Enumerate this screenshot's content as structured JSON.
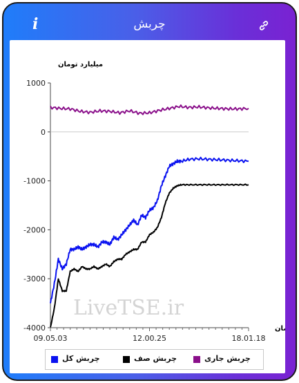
{
  "header": {
    "title": "چربش",
    "info_icon": "i"
  },
  "watermark": "LiveTSE.ir",
  "colors": {
    "total": "#0a12f0",
    "slippage": "#000000",
    "current": "#8a0f8a",
    "gradient_start": "#1f7dfa",
    "gradient_end": "#7a22d2"
  },
  "chart_data": {
    "type": "line",
    "ylabel": "میلیارد تومان",
    "xlabel": "زمان",
    "ylim": [
      -4000,
      1000
    ],
    "yticks": [
      1000,
      0,
      -1000,
      -2000,
      -3000,
      -4000
    ],
    "yticks_labels": [
      "1000",
      "0",
      "-1000",
      "-2000",
      "-3000",
      "-4000"
    ],
    "x_tick_labels": [
      "09.05.03",
      "12.00.25",
      "18.01.18"
    ],
    "x_tick_positions": [
      0,
      0.5,
      1
    ],
    "grid": "horizontal at 0",
    "legend_position": "bottom",
    "series": [
      {
        "name": "چربش کل",
        "color": "#0a12f0",
        "x": [
          0,
          0.02,
          0.04,
          0.06,
          0.08,
          0.1,
          0.12,
          0.14,
          0.16,
          0.18,
          0.2,
          0.22,
          0.24,
          0.26,
          0.28,
          0.3,
          0.32,
          0.34,
          0.36,
          0.38,
          0.4,
          0.42,
          0.44,
          0.46,
          0.48,
          0.5,
          0.52,
          0.54,
          0.56,
          0.58,
          0.6,
          0.62,
          0.64,
          0.66,
          0.7,
          0.75,
          0.8,
          0.85,
          0.9,
          0.95,
          1.0
        ],
        "values": [
          -3500,
          -3100,
          -2600,
          -2800,
          -2700,
          -2400,
          -2400,
          -2350,
          -2400,
          -2350,
          -2300,
          -2300,
          -2350,
          -2250,
          -2250,
          -2300,
          -2150,
          -2200,
          -2100,
          -2000,
          -1900,
          -1800,
          -1900,
          -1700,
          -1750,
          -1600,
          -1550,
          -1400,
          -1100,
          -900,
          -700,
          -650,
          -600,
          -600,
          -560,
          -550,
          -560,
          -570,
          -580,
          -590,
          -600
        ]
      },
      {
        "name": "چربش صف",
        "color": "#000000",
        "x": [
          0,
          0.02,
          0.04,
          0.06,
          0.08,
          0.1,
          0.12,
          0.14,
          0.16,
          0.18,
          0.2,
          0.22,
          0.24,
          0.26,
          0.28,
          0.3,
          0.32,
          0.34,
          0.36,
          0.38,
          0.4,
          0.42,
          0.44,
          0.46,
          0.48,
          0.5,
          0.52,
          0.54,
          0.56,
          0.58,
          0.6,
          0.62,
          0.64,
          0.66,
          0.7,
          0.75,
          0.8,
          0.85,
          0.9,
          0.95,
          1.0
        ],
        "values": [
          -4000,
          -3600,
          -3000,
          -3250,
          -3250,
          -2850,
          -2800,
          -2850,
          -2750,
          -2800,
          -2800,
          -2750,
          -2800,
          -2750,
          -2700,
          -2750,
          -2650,
          -2600,
          -2600,
          -2500,
          -2450,
          -2400,
          -2400,
          -2250,
          -2250,
          -2100,
          -2050,
          -1950,
          -1750,
          -1450,
          -1250,
          -1150,
          -1100,
          -1080,
          -1080,
          -1080,
          -1080,
          -1080,
          -1080,
          -1080,
          -1080
        ]
      },
      {
        "name": "چربش جاری",
        "color": "#8a0f8a",
        "x": [
          0,
          0.05,
          0.1,
          0.15,
          0.2,
          0.25,
          0.3,
          0.35,
          0.4,
          0.45,
          0.5,
          0.55,
          0.6,
          0.65,
          0.7,
          0.75,
          0.8,
          0.85,
          0.9,
          0.95,
          1.0
        ],
        "values": [
          500,
          480,
          470,
          420,
          400,
          430,
          420,
          390,
          430,
          380,
          390,
          440,
          480,
          520,
          500,
          510,
          490,
          480,
          470,
          470,
          480
        ]
      }
    ]
  }
}
